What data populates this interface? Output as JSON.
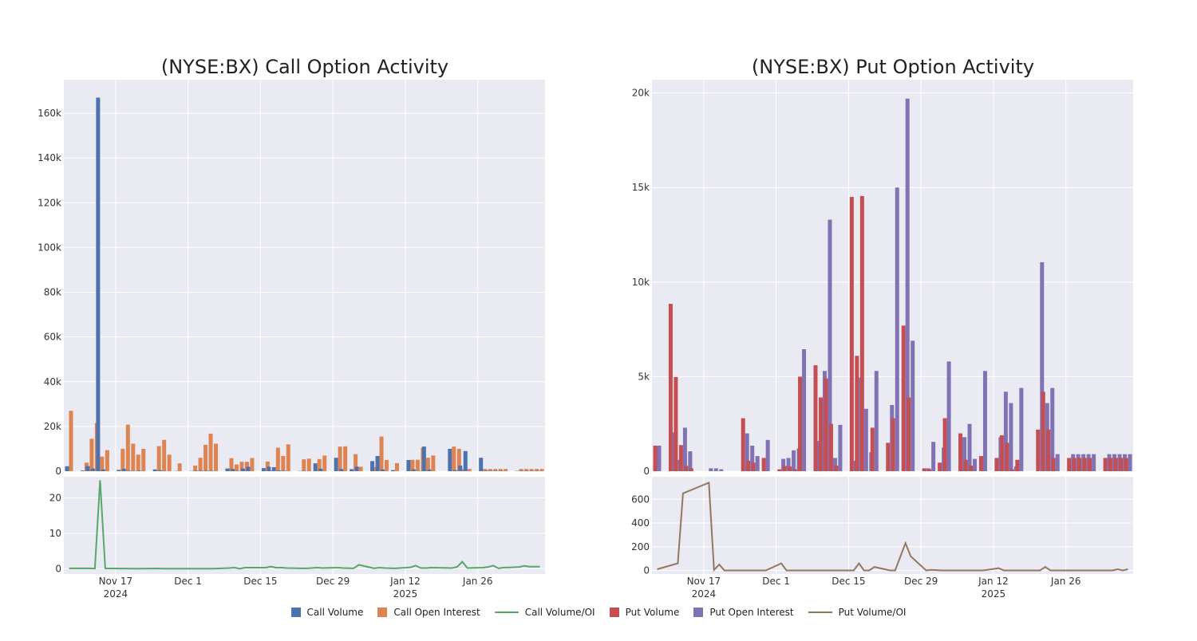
{
  "legend": [
    {
      "label": "Call Volume",
      "kind": "box",
      "color": "#4C72B0"
    },
    {
      "label": "Call Open Interest",
      "kind": "box",
      "color": "#DD8452"
    },
    {
      "label": "Call Volume/OI",
      "kind": "line",
      "color": "#55A868"
    },
    {
      "label": "Put Volume",
      "kind": "box",
      "color": "#C44E52"
    },
    {
      "label": "Put Open Interest",
      "kind": "box",
      "color": "#8172B3"
    },
    {
      "label": "Put Volume/OI",
      "kind": "line",
      "color": "#937860"
    }
  ],
  "colors": {
    "plot_bg": "#EAEAF2",
    "grid": "#ffffff",
    "call_volume": "#4C72B0",
    "call_oi": "#DD8452",
    "call_ratio": "#55A868",
    "put_volume": "#C44E52",
    "put_oi": "#8172B3",
    "put_ratio": "#937860"
  },
  "chart_data": [
    {
      "id": "call",
      "type": "bar",
      "title": "(NYSE:BX) Call Option Activity",
      "x_start": "2024-11-08",
      "x_end": "2025-02-07",
      "x_ticks": [
        {
          "date": "2024-11-17",
          "line1": "Nov 17",
          "line2": "2024"
        },
        {
          "date": "2024-12-01",
          "line1": "Dec 1",
          "line2": ""
        },
        {
          "date": "2024-12-15",
          "line1": "Dec 15",
          "line2": ""
        },
        {
          "date": "2024-12-29",
          "line1": "Dec 29",
          "line2": ""
        },
        {
          "date": "2025-01-12",
          "line1": "Jan 12",
          "line2": "2025"
        },
        {
          "date": "2025-01-26",
          "line1": "Jan 26",
          "line2": ""
        }
      ],
      "bars": {
        "ylim": [
          0,
          175000
        ],
        "y_ticks": [
          {
            "v": 0,
            "label": "0"
          },
          {
            "v": 20000,
            "label": "20k"
          },
          {
            "v": 40000,
            "label": "40k"
          },
          {
            "v": 60000,
            "label": "60k"
          },
          {
            "v": 80000,
            "label": "80k"
          },
          {
            "v": 100000,
            "label": "100k"
          },
          {
            "v": 120000,
            "label": "120k"
          },
          {
            "v": 140000,
            "label": "140k"
          },
          {
            "v": 160000,
            "label": "160k"
          }
        ],
        "dates": [
          "2024-11-08",
          "2024-11-11",
          "2024-11-12",
          "2024-11-13",
          "2024-11-14",
          "2024-11-15",
          "2024-11-18",
          "2024-11-19",
          "2024-11-20",
          "2024-11-21",
          "2024-11-22",
          "2024-11-25",
          "2024-11-26",
          "2024-11-27",
          "2024-11-29",
          "2024-12-02",
          "2024-12-03",
          "2024-12-04",
          "2024-12-05",
          "2024-12-06",
          "2024-12-09",
          "2024-12-10",
          "2024-12-11",
          "2024-12-12",
          "2024-12-13",
          "2024-12-16",
          "2024-12-17",
          "2024-12-18",
          "2024-12-19",
          "2024-12-20",
          "2024-12-23",
          "2024-12-24",
          "2024-12-26",
          "2024-12-27",
          "2024-12-30",
          "2024-12-31",
          "2025-01-02",
          "2025-01-03",
          "2025-01-06",
          "2025-01-07",
          "2025-01-08",
          "2025-01-10",
          "2025-01-13",
          "2025-01-14",
          "2025-01-15",
          "2025-01-16",
          "2025-01-17",
          "2025-01-21",
          "2025-01-22",
          "2025-01-23",
          "2025-01-24",
          "2025-01-27",
          "2025-01-28",
          "2025-01-29",
          "2025-01-30",
          "2025-01-31",
          "2025-02-03",
          "2025-02-04",
          "2025-02-05",
          "2025-02-06",
          "2025-02-07"
        ],
        "series": [
          {
            "name": "Call Volume",
            "color_key": "call_volume",
            "values": [
              2200,
              300,
              2300,
              1200,
              167000,
              800,
              600,
              1100,
              200,
              100,
              200,
              800,
              400,
              100,
              100,
              100,
              200,
              200,
              200,
              100,
              1200,
              1000,
              100,
              1200,
              2000,
              1400,
              2000,
              1800,
              300,
              200,
              100,
              100,
              3500,
              1100,
              6000,
              1000,
              900,
              2000,
              4500,
              6800,
              800,
              500,
              5000,
              800,
              100,
              11000,
              800,
              10000,
              500,
              2500,
              9000,
              6000,
              300,
              200,
              150,
              150,
              150,
              150,
              150,
              150,
              150
            ]
          },
          {
            "name": "Call Open Interest",
            "color_key": "call_oi",
            "values": [
              27000,
              3800,
              14500,
              21500,
              6500,
              9400,
              10000,
              20800,
              12300,
              7400,
              10000,
              11200,
              14000,
              7400,
              3500,
              2500,
              6000,
              11800,
              16800,
              12300,
              5800,
              3000,
              4200,
              4200,
              5900,
              4300,
              500,
              10500,
              6800,
              12000,
              5300,
              5600,
              5400,
              7000,
              11000,
              11100,
              7600,
              2000,
              1800,
              15500,
              5000,
              3600,
              5100,
              5100,
              10500,
              6000,
              7000,
              11000,
              10000,
              1000,
              1000,
              1000,
              1000,
              1000,
              1000,
              1000,
              1000,
              1000,
              1000,
              1000,
              1000
            ]
          }
        ]
      },
      "ratio": {
        "name": "Call Volume/OI",
        "color_key": "call_ratio",
        "ylim": [
          -1.5,
          26
        ],
        "y_ticks": [
          {
            "v": 0,
            "label": "0"
          },
          {
            "v": 10,
            "label": "10"
          },
          {
            "v": 20,
            "label": "20"
          }
        ],
        "dates": [
          "2024-11-08",
          "2024-11-11",
          "2024-11-12",
          "2024-11-13",
          "2024-11-14",
          "2024-11-15",
          "2024-11-18",
          "2024-11-19",
          "2024-11-20",
          "2024-11-21",
          "2024-11-22",
          "2024-11-25",
          "2024-11-26",
          "2024-11-27",
          "2024-11-29",
          "2024-12-02",
          "2024-12-03",
          "2024-12-04",
          "2024-12-05",
          "2024-12-06",
          "2024-12-09",
          "2024-12-10",
          "2024-12-11",
          "2024-12-12",
          "2024-12-13",
          "2024-12-16",
          "2024-12-17",
          "2024-12-18",
          "2024-12-19",
          "2024-12-20",
          "2024-12-23",
          "2024-12-24",
          "2024-12-26",
          "2024-12-27",
          "2024-12-30",
          "2024-12-31",
          "2025-01-02",
          "2025-01-03",
          "2025-01-06",
          "2025-01-07",
          "2025-01-08",
          "2025-01-10",
          "2025-01-13",
          "2025-01-14",
          "2025-01-15",
          "2025-01-16",
          "2025-01-17",
          "2025-01-21",
          "2025-01-22",
          "2025-01-23",
          "2025-01-24",
          "2025-01-27",
          "2025-01-28",
          "2025-01-29",
          "2025-01-30",
          "2025-01-31",
          "2025-02-03",
          "2025-02-04",
          "2025-02-05",
          "2025-02-06",
          "2025-02-07"
        ],
        "values": [
          0.1,
          0.1,
          0.1,
          0.06,
          25,
          0.1,
          0.06,
          0.05,
          0.02,
          0.01,
          0.02,
          0.07,
          0.03,
          0.01,
          0.03,
          0.04,
          0.03,
          0.02,
          0.01,
          0.01,
          0.2,
          0.3,
          0.02,
          0.3,
          0.3,
          0.3,
          0.6,
          0.3,
          0.3,
          0.2,
          0.1,
          0.1,
          0.3,
          0.2,
          0.3,
          0.2,
          0.1,
          1.1,
          0.1,
          0.3,
          0.2,
          0.1,
          0.4,
          0.9,
          0.2,
          0.2,
          0.3,
          0.2,
          0.5,
          2,
          0.2,
          0.3,
          0.5,
          0.9,
          0.1,
          0.3,
          0.5,
          0.8,
          0.6,
          0.6,
          0.6
        ]
      }
    },
    {
      "id": "put",
      "type": "bar",
      "title": "(NYSE:BX) Put Option Activity",
      "x_start": "2024-11-08",
      "x_end": "2025-02-07",
      "x_ticks": [
        {
          "date": "2024-11-17",
          "line1": "Nov 17",
          "line2": "2024"
        },
        {
          "date": "2024-12-01",
          "line1": "Dec 1",
          "line2": ""
        },
        {
          "date": "2024-12-15",
          "line1": "Dec 15",
          "line2": ""
        },
        {
          "date": "2024-12-29",
          "line1": "Dec 29",
          "line2": ""
        },
        {
          "date": "2025-01-12",
          "line1": "Jan 12",
          "line2": "2025"
        },
        {
          "date": "2025-01-26",
          "line1": "Jan 26",
          "line2": ""
        }
      ],
      "bars": {
        "ylim": [
          0,
          20700
        ],
        "y_ticks": [
          {
            "v": 0,
            "label": "0"
          },
          {
            "v": 5000,
            "label": "5k"
          },
          {
            "v": 10000,
            "label": "10k"
          },
          {
            "v": 15000,
            "label": "15k"
          },
          {
            "v": 20000,
            "label": "20k"
          }
        ],
        "dates": [
          "2024-11-08",
          "2024-11-11",
          "2024-11-12",
          "2024-11-13",
          "2024-11-14",
          "2024-11-15",
          "2024-11-18",
          "2024-11-19",
          "2024-11-20",
          "2024-11-21",
          "2024-11-22",
          "2024-11-25",
          "2024-11-26",
          "2024-11-27",
          "2024-11-29",
          "2024-12-02",
          "2024-12-03",
          "2024-12-04",
          "2024-12-05",
          "2024-12-06",
          "2024-12-09",
          "2024-12-10",
          "2024-12-11",
          "2024-12-12",
          "2024-12-13",
          "2024-12-16",
          "2024-12-17",
          "2024-12-18",
          "2024-12-19",
          "2024-12-20",
          "2024-12-23",
          "2024-12-24",
          "2024-12-26",
          "2024-12-27",
          "2024-12-30",
          "2024-12-31",
          "2025-01-02",
          "2025-01-03",
          "2025-01-06",
          "2025-01-07",
          "2025-01-08",
          "2025-01-10",
          "2025-01-13",
          "2025-01-14",
          "2025-01-15",
          "2025-01-16",
          "2025-01-17",
          "2025-01-21",
          "2025-01-22",
          "2025-01-23",
          "2025-01-24",
          "2025-01-27",
          "2025-01-28",
          "2025-01-29",
          "2025-01-30",
          "2025-01-31",
          "2025-02-03",
          "2025-02-04",
          "2025-02-05",
          "2025-02-06",
          "2025-02-07"
        ],
        "series": [
          {
            "name": "Put Volume",
            "color_key": "put_volume",
            "values": [
              1350,
              8850,
              4980,
              1380,
              280,
              150,
              0,
              0,
              0,
              0,
              0,
              2800,
              550,
              450,
              700,
              100,
              280,
              250,
              100,
              5000,
              5600,
              3900,
              4900,
              2500,
              300,
              14500,
              6100,
              14550,
              0,
              2300,
              1500,
              2800,
              7700,
              3900,
              150,
              100,
              450,
              2800,
              2000,
              600,
              300,
              800,
              700,
              1900,
              1500,
              100,
              600,
              2200,
              4200,
              2200,
              700,
              700,
              700,
              700,
              700,
              700,
              700,
              700,
              700,
              700,
              700
            ]
          },
          {
            "name": "Put Open Interest",
            "color_key": "put_oi",
            "values": [
              1350,
              2050,
              600,
              2300,
              1050,
              0,
              150,
              150,
              100,
              0,
              0,
              2000,
              1350,
              800,
              1650,
              650,
              700,
              1100,
              1200,
              6450,
              1600,
              5300,
              13300,
              700,
              2450,
              550,
              4950,
              3300,
              1000,
              5300,
              3500,
              15000,
              19700,
              6900,
              150,
              1550,
              1250,
              5800,
              1800,
              2500,
              650,
              5300,
              1800,
              4200,
              3600,
              250,
              4400,
              11050,
              3600,
              4400,
              900,
              900,
              900,
              900,
              900,
              900,
              900,
              900,
              900,
              900,
              900
            ]
          }
        ]
      },
      "ratio": {
        "name": "Put Volume/OI",
        "color_key": "put_ratio",
        "ylim": [
          -30,
          790
        ],
        "y_ticks": [
          {
            "v": 0,
            "label": "0"
          },
          {
            "v": 200,
            "label": "200"
          },
          {
            "v": 400,
            "label": "400"
          },
          {
            "v": 600,
            "label": "600"
          }
        ],
        "dates": [
          "2024-11-08",
          "2024-11-12",
          "2024-11-13",
          "2024-11-18",
          "2024-11-19",
          "2024-11-20",
          "2024-11-21",
          "2024-11-22",
          "2024-11-25",
          "2024-11-26",
          "2024-11-27",
          "2024-11-29",
          "2024-12-02",
          "2024-12-03",
          "2024-12-04",
          "2024-12-05",
          "2024-12-06",
          "2024-12-09",
          "2024-12-10",
          "2024-12-11",
          "2024-12-12",
          "2024-12-13",
          "2024-12-16",
          "2024-12-17",
          "2024-12-18",
          "2024-12-19",
          "2024-12-20",
          "2024-12-23",
          "2024-12-24",
          "2024-12-26",
          "2024-12-27",
          "2024-12-30",
          "2024-12-31",
          "2025-01-02",
          "2025-01-03",
          "2025-01-06",
          "2025-01-07",
          "2025-01-08",
          "2025-01-10",
          "2025-01-13",
          "2025-01-14",
          "2025-01-15",
          "2025-01-16",
          "2025-01-17",
          "2025-01-21",
          "2025-01-22",
          "2025-01-23",
          "2025-01-24",
          "2025-01-27",
          "2025-01-28",
          "2025-01-29",
          "2025-01-30",
          "2025-01-31",
          "2025-02-03",
          "2025-02-04",
          "2025-02-05",
          "2025-02-06",
          "2025-02-07"
        ],
        "values": [
          10,
          60,
          650,
          740,
          5,
          50,
          0,
          0,
          0,
          0,
          0,
          0,
          60,
          0,
          0,
          0,
          0,
          0,
          0,
          0,
          0,
          0,
          0,
          60,
          0,
          0,
          30,
          0,
          0,
          230,
          120,
          0,
          5,
          0,
          0,
          0,
          0,
          0,
          0,
          20,
          0,
          0,
          0,
          0,
          0,
          30,
          0,
          0,
          0,
          0,
          0,
          0,
          0,
          0,
          0,
          10,
          0,
          10
        ]
      }
    }
  ]
}
